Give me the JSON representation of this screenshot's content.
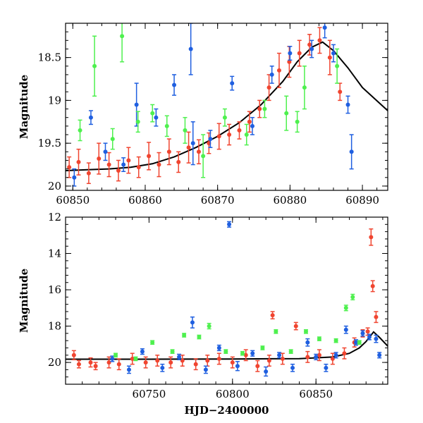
{
  "chart_data": [
    {
      "type": "scatter",
      "panel": "top",
      "title": "",
      "xlabel": "",
      "ylabel": "Magnitude",
      "xlim": [
        60849,
        60893.5
      ],
      "ylim": [
        20.05,
        18.1
      ],
      "y_inverted": true,
      "xticks": [
        60850,
        60860,
        60870,
        60880,
        60890
      ],
      "xtick_labels": [
        "60850",
        "60860",
        "60870",
        "60880",
        "60890"
      ],
      "yticks": [
        18.5,
        19,
        19.5,
        20
      ],
      "ytick_labels": [
        "18.5",
        "19",
        "19.5",
        "20"
      ],
      "grid": false,
      "legend": "none",
      "colors": {
        "red": "#f04530",
        "blue": "#1f5fe0",
        "green": "#4ef04e",
        "model": "#000000"
      },
      "series": [
        {
          "color": "red",
          "x": [
            60849.5,
            60850.8,
            60852.2,
            60853.6,
            60855.0,
            60856.3,
            60857.7,
            60859.1,
            60860.5,
            60861.9,
            60863.3,
            60864.6,
            60866.0,
            60867.4,
            60868.8,
            60870.2,
            60871.6,
            60873.0,
            60874.4,
            60875.8,
            60877.1,
            60878.5,
            60879.9,
            60881.3,
            60882.7,
            60884.1,
            60885.5,
            60886.9
          ],
          "y": [
            19.78,
            19.72,
            19.85,
            19.68,
            19.75,
            19.82,
            19.7,
            19.78,
            19.65,
            19.75,
            19.6,
            19.72,
            19.55,
            19.6,
            19.5,
            19.42,
            19.4,
            19.35,
            19.25,
            19.1,
            18.85,
            18.65,
            18.55,
            18.45,
            18.35,
            18.3,
            18.5,
            18.9
          ],
          "err": [
            0.12,
            0.15,
            0.12,
            0.18,
            0.14,
            0.12,
            0.15,
            0.12,
            0.16,
            0.14,
            0.15,
            0.12,
            0.18,
            0.14,
            0.12,
            0.15,
            0.12,
            0.1,
            0.12,
            0.1,
            0.15,
            0.2,
            0.18,
            0.15,
            0.12,
            0.15,
            0.2,
            0.1
          ]
        },
        {
          "color": "blue",
          "x": [
            60850.2,
            60852.5,
            60854.5,
            60857.0,
            60858.8,
            60861.5,
            60864.0,
            60866.3,
            60866.6,
            60869.0,
            60872.0,
            60874.8,
            60877.5,
            60880.0,
            60883.0,
            60884.8,
            60886.0,
            60888.0,
            60888.5
          ],
          "y": [
            19.9,
            19.2,
            19.6,
            19.75,
            19.05,
            19.2,
            18.82,
            18.4,
            19.5,
            19.45,
            18.8,
            19.3,
            18.7,
            18.45,
            18.4,
            18.15,
            18.45,
            19.05,
            19.6
          ],
          "err": [
            0.1,
            0.08,
            0.1,
            0.08,
            0.25,
            0.1,
            0.12,
            0.3,
            0.25,
            0.1,
            0.08,
            0.1,
            0.1,
            0.08,
            0.1,
            0.12,
            0.1,
            0.1,
            0.2
          ]
        },
        {
          "color": "green",
          "x": [
            60851.0,
            60853.0,
            60855.5,
            60856.8,
            60859.0,
            60861.0,
            60863.0,
            60865.5,
            60868.0,
            60871.0,
            60874.0,
            60876.5,
            60879.5,
            60881.0,
            60882.0,
            60886.5
          ],
          "y": [
            19.35,
            18.6,
            19.45,
            18.25,
            19.25,
            19.15,
            19.3,
            19.35,
            19.65,
            19.2,
            19.4,
            19.1,
            19.15,
            19.25,
            18.85,
            18.6
          ],
          "err": [
            0.12,
            0.35,
            0.12,
            0.3,
            0.12,
            0.1,
            0.12,
            0.15,
            0.25,
            0.1,
            0.12,
            0.1,
            0.2,
            0.12,
            0.25,
            0.2
          ]
        }
      ],
      "model": {
        "color": "model",
        "x": [
          60849,
          60852,
          60855,
          60858,
          60861,
          60864,
          60867,
          60870,
          60873,
          60876,
          60879,
          60881,
          60883,
          60884.5,
          60886,
          60888,
          60890,
          60893.5
        ],
        "y": [
          19.82,
          19.81,
          19.8,
          19.78,
          19.74,
          19.66,
          19.55,
          19.42,
          19.26,
          19.05,
          18.78,
          18.55,
          18.38,
          18.32,
          18.42,
          18.62,
          18.85,
          19.12
        ]
      }
    },
    {
      "type": "scatter",
      "panel": "bottom",
      "title": "",
      "xlabel": "HJD−2400000",
      "ylabel": "Magnitude",
      "xlim": [
        60700,
        60893
      ],
      "ylim": [
        21.2,
        12
      ],
      "y_inverted": true,
      "xticks": [
        60750,
        60800,
        60850
      ],
      "xtick_labels": [
        "60750",
        "60800",
        "60850"
      ],
      "yticks": [
        12,
        14,
        16,
        18,
        20
      ],
      "ytick_labels": [
        "12",
        "14",
        "16",
        "18",
        "20"
      ],
      "grid": false,
      "legend": "none",
      "colors": {
        "red": "#f04530",
        "blue": "#1f5fe0",
        "green": "#4ef04e",
        "model": "#000000"
      },
      "series": [
        {
          "color": "red",
          "x": [
            60705,
            60708,
            60715,
            60718,
            60726,
            60732,
            60740,
            60748,
            60755,
            60763,
            60770,
            60778,
            60785,
            60792,
            60800,
            60808,
            60815,
            60822,
            60824,
            60830,
            60838,
            60845,
            60852,
            60860,
            60867,
            60873,
            60878,
            60881,
            60883,
            60884,
            60886
          ],
          "y": [
            19.6,
            20.1,
            20.0,
            20.2,
            20.0,
            20.1,
            19.8,
            20.0,
            19.9,
            20.0,
            19.9,
            20.1,
            19.9,
            19.8,
            20.0,
            19.6,
            20.2,
            19.9,
            17.4,
            19.8,
            18.0,
            19.7,
            19.6,
            19.8,
            19.5,
            18.9,
            18.4,
            18.3,
            13.1,
            15.8,
            17.5
          ],
          "err": [
            0.25,
            0.2,
            0.25,
            0.2,
            0.3,
            0.3,
            0.3,
            0.3,
            0.3,
            0.3,
            0.3,
            0.3,
            0.3,
            0.3,
            0.3,
            0.3,
            0.3,
            0.3,
            0.2,
            0.3,
            0.2,
            0.3,
            0.3,
            0.3,
            0.3,
            0.25,
            0.2,
            0.2,
            0.45,
            0.3,
            0.3
          ]
        },
        {
          "color": "blue",
          "x": [
            60728,
            60738,
            60746,
            60758,
            60768,
            60776,
            60784,
            60792,
            60798,
            60803,
            60812,
            60820,
            60828,
            60836,
            60845,
            60850,
            60856,
            60862,
            60868,
            60874,
            60878,
            60882,
            60886,
            60888
          ],
          "y": [
            19.8,
            20.4,
            19.4,
            20.3,
            19.7,
            17.8,
            20.4,
            19.2,
            12.4,
            20.2,
            19.5,
            20.5,
            19.6,
            20.3,
            18.9,
            19.7,
            20.3,
            19.6,
            18.2,
            18.9,
            18.4,
            18.6,
            18.7,
            19.6
          ],
          "err": [
            0.15,
            0.2,
            0.15,
            0.2,
            0.15,
            0.3,
            0.2,
            0.15,
            0.15,
            0.25,
            0.15,
            0.25,
            0.15,
            0.2,
            0.2,
            0.15,
            0.2,
            0.15,
            0.2,
            0.15,
            0.15,
            0.15,
            0.2,
            0.15
          ]
        },
        {
          "color": "green",
          "x": [
            60730,
            60742,
            60752,
            60764,
            60771,
            60780,
            60786,
            60796,
            60806,
            60818,
            60826,
            60835,
            60844,
            60852,
            60862,
            60868,
            60872,
            60876
          ],
          "y": [
            19.6,
            19.8,
            18.9,
            19.4,
            18.5,
            18.6,
            18.0,
            19.4,
            19.5,
            19.2,
            18.3,
            19.4,
            18.3,
            18.7,
            18.8,
            17.0,
            16.4,
            18.9
          ],
          "err": [
            0.1,
            0.1,
            0.1,
            0.1,
            0.1,
            0.1,
            0.15,
            0.1,
            0.1,
            0.1,
            0.1,
            0.1,
            0.1,
            0.1,
            0.1,
            0.15,
            0.15,
            0.1
          ]
        }
      ],
      "model": {
        "color": "model",
        "x": [
          60700,
          60750,
          60800,
          60840,
          60860,
          60870,
          60876,
          60880,
          60884.5,
          60888,
          60893
        ],
        "y": [
          19.82,
          19.82,
          19.81,
          19.79,
          19.7,
          19.5,
          19.2,
          18.85,
          18.32,
          18.62,
          19.1
        ]
      }
    }
  ]
}
